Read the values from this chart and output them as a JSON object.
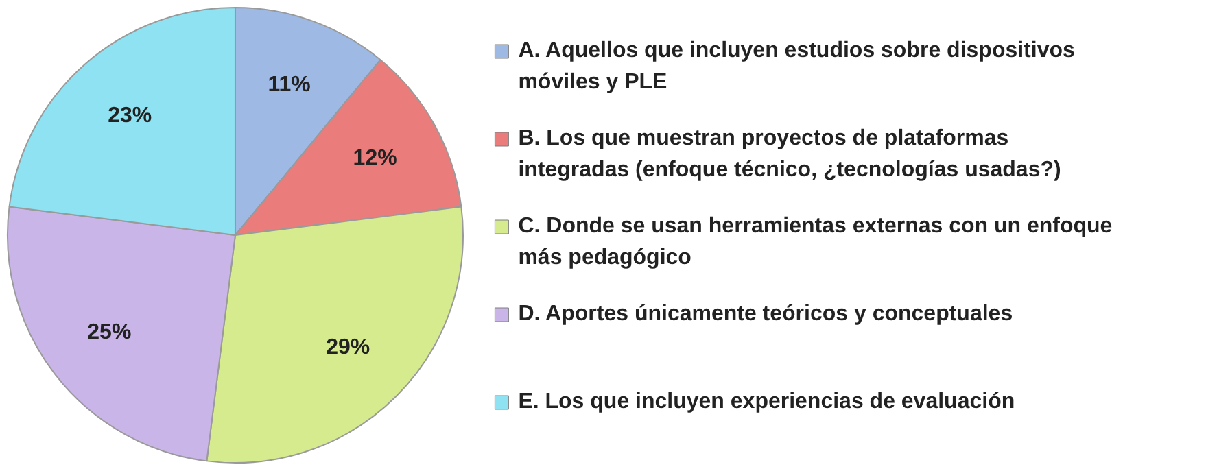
{
  "chart_data": {
    "type": "pie",
    "categories": [
      "A.  Aquellos que incluyen estudios sobre dispositivos móviles y PLE",
      "B.  Los que muestran proyectos de plataformas integradas (enfoque técnico, ¿tecnologías usadas?)",
      "C.  Donde se usan herramientas externas con un enfoque más pedagógico",
      "D.  Aportes únicamente teóricos y conceptuales",
      "E.  Los que incluyen experiencias de evaluación"
    ],
    "values": [
      11,
      12,
      29,
      25,
      23
    ],
    "colors": [
      "#9db9e4",
      "#ea7d7c",
      "#d5eb8e",
      "#c9b5e8",
      "#8ee2f1"
    ],
    "value_labels": [
      "11%",
      "12%",
      "29%",
      "25%",
      "23%"
    ],
    "legend": "right"
  }
}
